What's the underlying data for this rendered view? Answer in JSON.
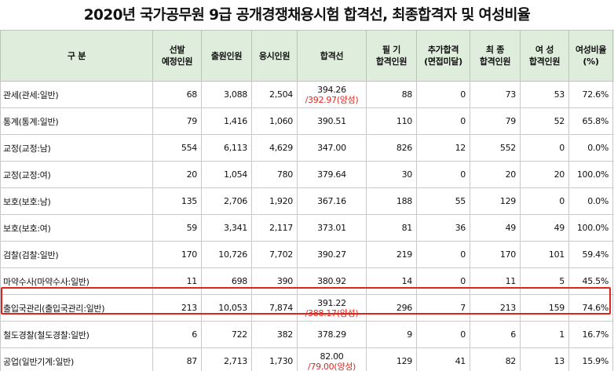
{
  "title": "2020년 국가공무원 9급 공개경쟁채용시험 합격선, 최종합격자 및 여성비율",
  "headers": {
    "category": "구 분",
    "planned": [
      "선발",
      "예정인원"
    ],
    "applicants": "출원인원",
    "takers": "응시인원",
    "cutoff": "합격선",
    "written_pass": [
      "필 기",
      "합격인원"
    ],
    "extra_pass": [
      "추가합격",
      "(면접미달)"
    ],
    "final_pass": [
      "최 종",
      "합격인원"
    ],
    "female_pass": [
      "여 성",
      "합격인원"
    ],
    "female_ratio": [
      "여성비율",
      "(%)"
    ]
  },
  "rows": [
    {
      "name": "관세(관세:일반)",
      "planned": "68",
      "applicants": "3,088",
      "takers": "2,504",
      "cutoff": "394.26",
      "cutoff_sub": "/392.97(양성)",
      "written": "88",
      "extra": "0",
      "final": "73",
      "female": "53",
      "ratio": "72.6%"
    },
    {
      "name": "통계(통계:일반)",
      "planned": "79",
      "applicants": "1,416",
      "takers": "1,060",
      "cutoff": "390.51",
      "cutoff_sub": "",
      "written": "110",
      "extra": "0",
      "final": "79",
      "female": "52",
      "ratio": "65.8%"
    },
    {
      "name": "교정(교정:남)",
      "planned": "554",
      "applicants": "6,113",
      "takers": "4,629",
      "cutoff": "347.00",
      "cutoff_sub": "",
      "written": "826",
      "extra": "12",
      "final": "552",
      "female": "0",
      "ratio": "0.0%"
    },
    {
      "name": "교정(교정:여)",
      "planned": "20",
      "applicants": "1,054",
      "takers": "780",
      "cutoff": "379.64",
      "cutoff_sub": "",
      "written": "30",
      "extra": "0",
      "final": "20",
      "female": "20",
      "ratio": "100.0%"
    },
    {
      "name": "보호(보호:남)",
      "planned": "135",
      "applicants": "2,706",
      "takers": "1,920",
      "cutoff": "367.16",
      "cutoff_sub": "",
      "written": "188",
      "extra": "55",
      "final": "129",
      "female": "0",
      "ratio": "0.0%"
    },
    {
      "name": "보호(보호:여)",
      "planned": "59",
      "applicants": "3,341",
      "takers": "2,117",
      "cutoff": "373.01",
      "cutoff_sub": "",
      "written": "81",
      "extra": "36",
      "final": "49",
      "female": "49",
      "ratio": "100.0%"
    },
    {
      "name": "검찰(검찰:일반)",
      "planned": "170",
      "applicants": "10,726",
      "takers": "7,702",
      "cutoff": "390.27",
      "cutoff_sub": "",
      "written": "219",
      "extra": "0",
      "final": "170",
      "female": "101",
      "ratio": "59.4%"
    },
    {
      "name": "마약수사(마약수사:일반)",
      "planned": "11",
      "applicants": "698",
      "takers": "390",
      "cutoff": "380.92",
      "cutoff_sub": "",
      "written": "14",
      "extra": "0",
      "final": "11",
      "female": "5",
      "ratio": "45.5%"
    },
    {
      "name": "출입국관리(출입국관리:일반)",
      "planned": "213",
      "applicants": "10,053",
      "takers": "7,874",
      "cutoff": "391.22",
      "cutoff_sub": "/388.17(양성)",
      "written": "296",
      "extra": "7",
      "final": "213",
      "female": "159",
      "ratio": "74.6%"
    },
    {
      "name": "철도경찰(철도경찰:일반)",
      "planned": "6",
      "applicants": "722",
      "takers": "382",
      "cutoff": "378.29",
      "cutoff_sub": "",
      "written": "9",
      "extra": "0",
      "final": "6",
      "female": "1",
      "ratio": "16.7%"
    },
    {
      "name": "공업(일반기계:일반)",
      "planned": "87",
      "applicants": "2,713",
      "takers": "1,730",
      "cutoff": "82.00",
      "cutoff_sub": "/79.00(양성)",
      "written": "129",
      "extra": "41",
      "final": "82",
      "female": "13",
      "ratio": "15.9%"
    }
  ],
  "highlight_color": "#e0241c",
  "header_fill": "#dfeedc"
}
